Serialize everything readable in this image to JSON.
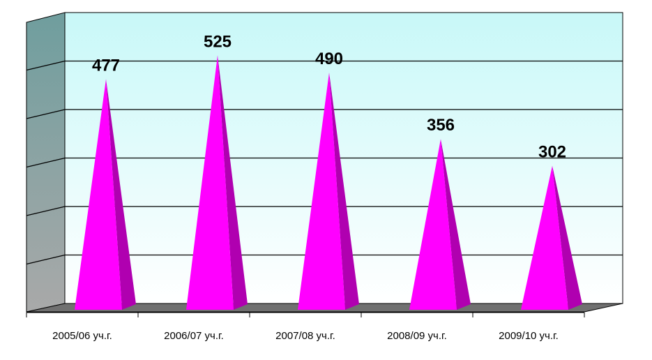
{
  "chart_data": {
    "type": "bar",
    "categories": [
      "2005/06 уч.г.",
      "2006/07 уч.г.",
      "2007/08 уч.г.",
      "2008/09 уч.г.",
      "2009/10 уч.г."
    ],
    "values": [
      477,
      525,
      490,
      356,
      302
    ],
    "data_labels": [
      "477",
      "525",
      "490",
      "356",
      "302"
    ],
    "title": "",
    "xlabel": "",
    "ylabel": "",
    "ylim": [
      0,
      600
    ],
    "grid": true,
    "legend": "none",
    "bar_shape": "pyramid",
    "colors": {
      "pyramid_front": "#ff00ff",
      "pyramid_side": "#b000b0",
      "back_wall_top": "#c8f8f8",
      "back_wall_bottom": "#ffffff",
      "side_wall_top": "#6f9e9e",
      "side_wall_bottom": "#a9a9a9",
      "floor": "#707070",
      "gridline": "#000000"
    }
  }
}
